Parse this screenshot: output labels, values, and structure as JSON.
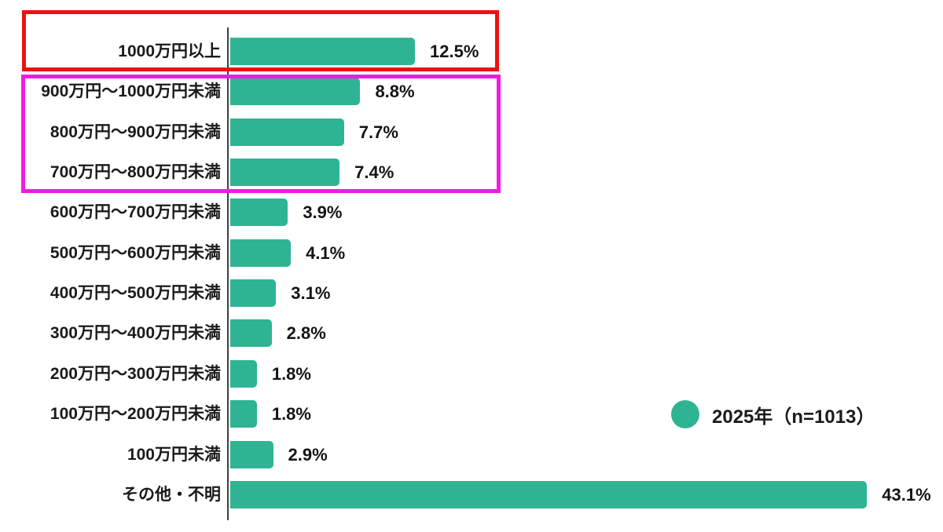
{
  "chart_data": {
    "type": "bar",
    "orientation": "horizontal",
    "title": "",
    "xlabel": "",
    "ylabel": "",
    "xlim": [
      0,
      45
    ],
    "grid": false,
    "categories": [
      "1000万円以上",
      "900万円～1000万円未満",
      "800万円～900万円未満",
      "700万円～800万円未満",
      "600万円～700万円未満",
      "500万円～600万円未満",
      "400万円～500万円未満",
      "300万円～400万円未満",
      "200万円～300万円未満",
      "100万円～200万円未満",
      "100万円未満",
      "その他・不明"
    ],
    "values": [
      12.5,
      8.8,
      7.7,
      7.4,
      3.9,
      4.1,
      3.1,
      2.8,
      1.8,
      1.8,
      2.9,
      43.1
    ],
    "value_labels": [
      "12.5%",
      "8.8%",
      "7.7%",
      "7.4%",
      "3.9%",
      "4.1%",
      "3.1%",
      "2.8%",
      "1.8%",
      "1.8%",
      "2.9%",
      "43.1%"
    ],
    "series": [
      {
        "name": "2025年 (n=1013)",
        "values": [
          12.5,
          8.8,
          7.7,
          7.4,
          3.9,
          4.1,
          3.1,
          2.8,
          1.8,
          1.8,
          2.9,
          43.1
        ]
      }
    ],
    "legend": {
      "label": "2025年（n=1013）",
      "position": "middle-right",
      "marker": "circle-icon"
    },
    "colors": {
      "bar": "#2fb493",
      "axis": "#3f3f3f",
      "text": "#1a1a1a"
    }
  },
  "annotations": {
    "red_box": {
      "color": "#ee1111",
      "highlighted_categories": [
        "1000万円以上"
      ]
    },
    "magenta_box": {
      "color": "#f21bdd",
      "highlighted_categories": [
        "900万円～1000万円未満",
        "800万円～900万円未満",
        "700万円～800万円未満"
      ]
    }
  }
}
